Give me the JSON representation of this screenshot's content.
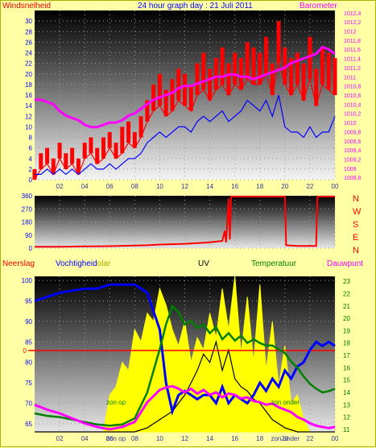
{
  "header": {
    "left_label": "Windsnelheid",
    "title": "24 hour graph day : 21 Juli 2011",
    "right_label": "Barometer"
  },
  "colors": {
    "background": "#ffffa6",
    "wind": "#ff0000",
    "gust": "#ff0000",
    "avg_wind": "#0000ff",
    "barometer": "#ff00ff",
    "direction": "#ff0000",
    "humidity": "#0000ff",
    "temperature": "#008000",
    "dewpoint": "#ff00ff",
    "uv": "#000000",
    "solar": "#ffff00",
    "axis_left": "#0000ff",
    "axis_right": "#ff00ff",
    "zero_line": "#ff0000"
  },
  "compass": [
    "N",
    "W",
    "S",
    "E",
    "N"
  ],
  "bottom_header": {
    "neerslag": "Neerslag",
    "vochtigheid": "Vochtigheid",
    "solar": "Solar",
    "uv": "UV",
    "temperatuur": "Temperatuur",
    "dauwpunt": "Dauwpunt"
  },
  "annotations": {
    "zon_op": "zon op",
    "zon_onder": "zon onder",
    "zero_label": "0"
  },
  "chart_data": [
    {
      "type": "line",
      "name": "wind-barometer",
      "x_ticks": [
        "02",
        "04",
        "06",
        "08",
        "10",
        "12",
        "14",
        "16",
        "18",
        "20",
        "22",
        "00"
      ],
      "y_left_ticks": [
        "0",
        "2",
        "4",
        "6",
        "8",
        "10",
        "12",
        "14",
        "16",
        "18",
        "20",
        "22",
        "24",
        "26",
        "28",
        "30"
      ],
      "y_left_range": [
        0,
        32
      ],
      "y_right_ticks": [
        "1008,8",
        "1009",
        "1009,2",
        "1009,4",
        "1009,6",
        "1009,8",
        "1010",
        "1010,2",
        "1010,4",
        "1010,6",
        "1010,8",
        "1011",
        "1011,2",
        "1011,4",
        "1011,6",
        "1011,8",
        "1012",
        "1012,2",
        "1012,4"
      ],
      "y_right_range": [
        1008.75,
        1012.45
      ],
      "x_range": [
        0,
        24
      ],
      "series": [
        {
          "role": "gust",
          "x": [
            0,
            0.5,
            1,
            1.5,
            2,
            2.5,
            3,
            3.5,
            4,
            4.5,
            5,
            5.5,
            6,
            6.5,
            7,
            7.5,
            8,
            8.5,
            9,
            9.5,
            10,
            10.5,
            11,
            11.5,
            12,
            12.5,
            13,
            13.5,
            14,
            14.5,
            15,
            15.5,
            16,
            16.5,
            17,
            17.5,
            18,
            18.5,
            19,
            19.5,
            20,
            20.5,
            21,
            21.5,
            22,
            22.5,
            23,
            23.5,
            24
          ],
          "values": [
            2,
            5,
            6,
            4,
            7,
            5,
            6,
            4,
            7,
            8,
            6,
            8,
            9,
            7,
            10,
            11,
            9,
            12,
            15,
            18,
            20,
            17,
            19,
            21,
            20,
            18,
            22,
            24,
            21,
            23,
            25,
            22,
            24,
            23,
            26,
            25,
            24,
            27,
            22,
            30,
            25,
            23,
            24,
            22,
            27,
            21,
            25,
            24,
            23
          ]
        },
        {
          "role": "wind",
          "x": [
            0,
            0.5,
            1,
            1.5,
            2,
            2.5,
            3,
            3.5,
            4,
            4.5,
            5,
            5.5,
            6,
            6.5,
            7,
            7.5,
            8,
            8.5,
            9,
            9.5,
            10,
            10.5,
            11,
            11.5,
            12,
            12.5,
            13,
            13.5,
            14,
            14.5,
            15,
            15.5,
            16,
            16.5,
            17,
            17.5,
            18,
            18.5,
            19,
            19.5,
            20,
            20.5,
            21,
            21.5,
            22,
            22.5,
            23,
            23.5,
            24
          ],
          "values": [
            0,
            2,
            3,
            1,
            4,
            2,
            3,
            1,
            4,
            5,
            3,
            4,
            6,
            4,
            5,
            7,
            6,
            8,
            11,
            13,
            14,
            12,
            13,
            15,
            14,
            13,
            16,
            17,
            15,
            17,
            18,
            16,
            18,
            17,
            19,
            18,
            18,
            20,
            16,
            22,
            18,
            16,
            18,
            15,
            19,
            14,
            18,
            17,
            16
          ]
        },
        {
          "role": "avg_wind",
          "x": [
            0,
            0.5,
            1,
            1.5,
            2,
            2.5,
            3,
            3.5,
            4,
            4.5,
            5,
            5.5,
            6,
            6.5,
            7,
            7.5,
            8,
            8.5,
            9,
            9.5,
            10,
            10.5,
            11,
            11.5,
            12,
            12.5,
            13,
            13.5,
            14,
            14.5,
            15,
            15.5,
            16,
            16.5,
            17,
            17.5,
            18,
            18.5,
            19,
            19.5,
            20,
            20.5,
            21,
            21.5,
            22,
            22.5,
            23,
            23.5,
            24
          ],
          "values": [
            1,
            1,
            2,
            1,
            2,
            1,
            2,
            1,
            2,
            3,
            2,
            2,
            3,
            2,
            3,
            4,
            4,
            5,
            7,
            8,
            9,
            8,
            9,
            10,
            10,
            9,
            11,
            12,
            11,
            12,
            13,
            11,
            12,
            13,
            15,
            14,
            13,
            15,
            12,
            16,
            10,
            9,
            9,
            8,
            10,
            8,
            9,
            9,
            12
          ]
        },
        {
          "role": "barometer",
          "axis": "right",
          "x": [
            0,
            0.5,
            1,
            1.5,
            2,
            2.5,
            3,
            3.5,
            4,
            4.5,
            5,
            5.5,
            6,
            6.5,
            7,
            7.5,
            8,
            8.5,
            9,
            9.5,
            10,
            10.5,
            11,
            11.5,
            12,
            12.5,
            13,
            13.5,
            14,
            14.5,
            15,
            15.5,
            16,
            16.5,
            17,
            17.5,
            18,
            18.5,
            19,
            19.5,
            20,
            20.5,
            21,
            21.5,
            22,
            22.5,
            23,
            23.5,
            24
          ],
          "values": [
            1010.5,
            1010.5,
            1010.45,
            1010.4,
            1010.25,
            1010.15,
            1010.1,
            1010.05,
            1009.95,
            1009.9,
            1009.9,
            1009.95,
            1010.0,
            1010.0,
            1010.05,
            1010.15,
            1010.2,
            1010.3,
            1010.4,
            1010.5,
            1010.55,
            1010.6,
            1010.65,
            1010.75,
            1010.8,
            1010.8,
            1010.85,
            1010.9,
            1010.95,
            1011.0,
            1011.0,
            1011.05,
            1011.05,
            1011.0,
            1011.0,
            1010.95,
            1011.0,
            1011.05,
            1011.1,
            1011.15,
            1011.2,
            1011.3,
            1011.35,
            1011.4,
            1011.45,
            1011.5,
            1011.65,
            1011.6,
            1011.5
          ]
        }
      ]
    },
    {
      "type": "line",
      "name": "wind-direction",
      "x_range": [
        0,
        24
      ],
      "y_ticks": [
        "0",
        "90",
        "180",
        "270",
        "360"
      ],
      "y_range": [
        0,
        360
      ],
      "series": [
        {
          "role": "direction",
          "x": [
            0,
            2,
            4,
            6,
            8,
            9,
            10,
            12,
            14,
            15,
            15.2,
            15.3,
            15.5,
            15.6,
            15.7,
            16,
            18,
            19.5,
            20,
            20.1,
            21,
            22,
            22.5,
            22.6,
            23,
            24
          ],
          "values": [
            10,
            10,
            12,
            14,
            18,
            20,
            25,
            30,
            40,
            50,
            120,
            40,
            340,
            60,
            355,
            355,
            355,
            355,
            355,
            20,
            15,
            15,
            15,
            355,
            355,
            355
          ]
        }
      ]
    },
    {
      "type": "line",
      "name": "humidity-temperature-uv-solar",
      "x_range": [
        0,
        24
      ],
      "y_left_ticks": [
        "65",
        "70",
        "75",
        "80",
        "85",
        "90",
        "95",
        "100"
      ],
      "y_left_range": [
        63,
        101
      ],
      "y_right_ticks": [
        "11",
        "12",
        "13",
        "14",
        "15",
        "16",
        "17",
        "18",
        "19",
        "20",
        "21",
        "22",
        "23"
      ],
      "y_right_range": [
        10.8,
        23.4
      ],
      "series": [
        {
          "role": "humidity",
          "x": [
            0,
            1,
            2,
            3,
            4,
            5,
            6,
            7,
            8,
            9,
            10,
            10.5,
            11,
            11.5,
            12,
            12.5,
            13,
            13.5,
            14,
            14.5,
            15,
            15.5,
            16,
            16.5,
            17,
            17.5,
            18,
            18.5,
            19,
            19.5,
            20,
            20.5,
            21,
            21.5,
            22,
            22.5,
            23,
            23.5,
            24
          ],
          "values": [
            95,
            96,
            97,
            97.5,
            98,
            98,
            99,
            99,
            99,
            97,
            88,
            75,
            68,
            72,
            73,
            72,
            71,
            72,
            72,
            70,
            74,
            70,
            72,
            71,
            70,
            72,
            75,
            73,
            76,
            74,
            78,
            76,
            79,
            80,
            83,
            85,
            84,
            85,
            84
          ]
        },
        {
          "role": "temperature",
          "axis": "right",
          "x": [
            0,
            1,
            2,
            3,
            4,
            5,
            6,
            7,
            8,
            9,
            10,
            10.5,
            11,
            11.5,
            12,
            12.5,
            13,
            13.5,
            14,
            14.5,
            15,
            15.5,
            16,
            16.5,
            17,
            17.5,
            18,
            18.5,
            19,
            19.5,
            20,
            20.5,
            21,
            21.5,
            22,
            22.5,
            23,
            23.5,
            24
          ],
          "values": [
            12.3,
            12.1,
            12.0,
            11.8,
            11.6,
            11.4,
            11.3,
            11.4,
            11.9,
            14.0,
            17.5,
            19.5,
            21.0,
            20.5,
            19.5,
            19.8,
            19.2,
            19.5,
            18.8,
            19.3,
            18.3,
            18.8,
            18.2,
            18.6,
            18.0,
            18.3,
            18.0,
            17.8,
            17.8,
            17.5,
            17.2,
            16.5,
            16.0,
            15.3,
            14.7,
            14.3,
            14.0,
            14.1,
            14.3
          ]
        },
        {
          "role": "dewpoint",
          "axis": "right",
          "x": [
            0,
            1,
            2,
            3,
            4,
            5,
            6,
            7,
            8,
            9,
            10,
            10.5,
            11,
            11.5,
            12,
            12.5,
            13,
            13.5,
            14,
            14.5,
            15,
            15.5,
            16,
            16.5,
            17,
            17.5,
            18,
            18.5,
            19,
            19.5,
            20,
            20.5,
            21,
            21.5,
            22,
            22.5,
            23,
            23.5,
            24
          ],
          "values": [
            13.0,
            12.6,
            12.3,
            11.9,
            11.5,
            11.2,
            11.0,
            11.2,
            11.6,
            13.2,
            14.2,
            14.4,
            14.5,
            14.3,
            14.0,
            14.3,
            13.9,
            14.2,
            13.8,
            14.0,
            13.6,
            13.9,
            13.8,
            13.5,
            13.6,
            13.3,
            13.2,
            13.0,
            13.1,
            12.8,
            12.6,
            12.4,
            12.0,
            11.8,
            11.5,
            11.3,
            11.2,
            11.1,
            11.2
          ]
        },
        {
          "role": "uv",
          "x": [
            0,
            6,
            7,
            8,
            9,
            10,
            11,
            11.5,
            12,
            12.5,
            13,
            13.5,
            14,
            14.5,
            15,
            15.5,
            16,
            16.5,
            17,
            17.5,
            18,
            18.5,
            19,
            20,
            21,
            24
          ],
          "values": [
            63,
            63,
            63,
            63,
            64,
            66,
            68,
            70,
            72,
            75,
            78,
            82,
            80,
            85,
            78,
            83,
            76,
            74,
            73,
            71,
            70,
            68,
            66,
            64,
            63,
            63
          ]
        },
        {
          "role": "solar",
          "x": [
            0,
            5.5,
            6,
            6.5,
            7,
            7.5,
            8,
            8.5,
            9,
            9.5,
            10,
            10.5,
            11,
            11.5,
            12,
            12.5,
            13,
            13.5,
            14,
            14.5,
            15,
            15.5,
            16,
            16.5,
            17,
            17.5,
            18,
            18.5,
            19,
            19.5,
            20,
            20.5,
            21,
            21.5,
            22,
            24
          ],
          "values": [
            63,
            63,
            72,
            74,
            80,
            78,
            88,
            85,
            92,
            90,
            98,
            94,
            88,
            84,
            90,
            80,
            86,
            83,
            92,
            86,
            98,
            88,
            101,
            82,
            96,
            80,
            99,
            78,
            90,
            74,
            84,
            70,
            72,
            66,
            63,
            63
          ]
        }
      ]
    }
  ]
}
